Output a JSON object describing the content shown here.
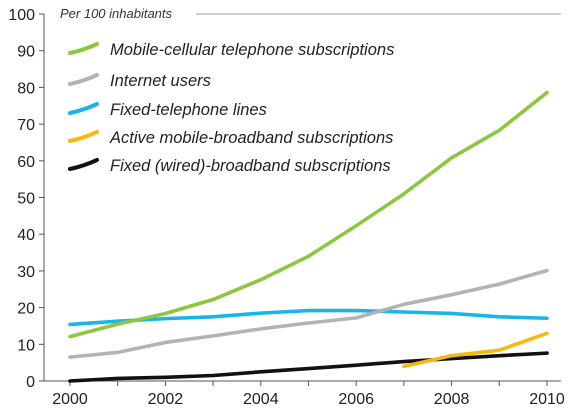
{
  "chart_data": {
    "type": "line",
    "ylabel": "Per 100 inhabitants",
    "xlabel": "",
    "ylim": [
      0,
      100
    ],
    "xlim": [
      2000,
      2010
    ],
    "yticks": [
      0,
      10,
      20,
      30,
      40,
      50,
      60,
      70,
      80,
      90,
      100
    ],
    "xticks": [
      2000,
      2002,
      2004,
      2006,
      2008,
      2010
    ],
    "grid": false,
    "legend": "top-left",
    "series": [
      {
        "name": "Mobile-cellular telephone subscriptions",
        "color": "#8dc63f",
        "x": [
          2000,
          2001,
          2002,
          2003,
          2004,
          2005,
          2006,
          2007,
          2008,
          2009,
          2010
        ],
        "y": [
          12.1,
          15.5,
          18.4,
          22.2,
          27.6,
          34.0,
          42.3,
          51.0,
          60.8,
          68.3,
          78.6
        ]
      },
      {
        "name": "Internet users",
        "color": "#b3b3b3",
        "x": [
          2000,
          2001,
          2002,
          2003,
          2004,
          2005,
          2006,
          2007,
          2008,
          2009,
          2010
        ],
        "y": [
          6.5,
          7.8,
          10.5,
          12.3,
          14.2,
          15.8,
          17.2,
          20.9,
          23.5,
          26.4,
          30.1
        ]
      },
      {
        "name": "Fixed-telephone lines",
        "color": "#1ab5e8",
        "x": [
          2000,
          2001,
          2002,
          2003,
          2004,
          2005,
          2006,
          2007,
          2008,
          2009,
          2010
        ],
        "y": [
          15.4,
          16.3,
          17.0,
          17.5,
          18.5,
          19.2,
          19.2,
          18.8,
          18.4,
          17.5,
          17.1
        ]
      },
      {
        "name": "Active mobile-broadband subscriptions",
        "color": "#f5b90f",
        "x": [
          2007,
          2008,
          2009,
          2010
        ],
        "y": [
          4.0,
          6.9,
          8.4,
          13.0
        ]
      },
      {
        "name": "Fixed (wired)-broadband subscriptions",
        "color": "#111111",
        "x": [
          2000,
          2001,
          2002,
          2003,
          2004,
          2005,
          2006,
          2007,
          2008,
          2009,
          2010
        ],
        "y": [
          0.0,
          0.7,
          1.0,
          1.5,
          2.5,
          3.4,
          4.3,
          5.3,
          6.1,
          6.9,
          7.6
        ]
      }
    ]
  }
}
